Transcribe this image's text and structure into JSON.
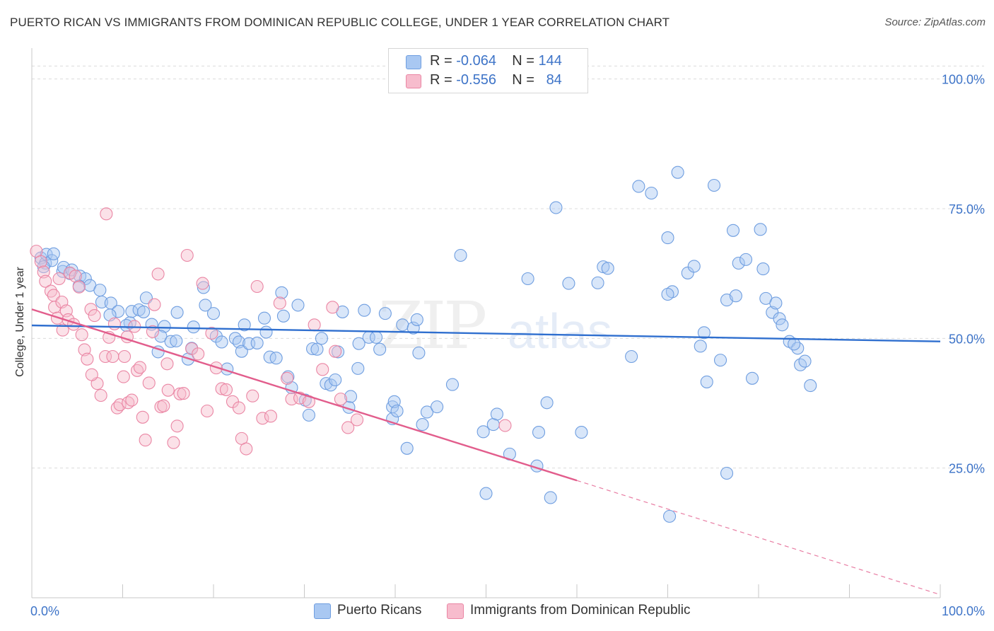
{
  "title": "PUERTO RICAN VS IMMIGRANTS FROM DOMINICAN REPUBLIC COLLEGE, UNDER 1 YEAR CORRELATION CHART",
  "source": "Source: ZipAtlas.com",
  "watermark": {
    "zip": "ZIP",
    "atlas": "atlas"
  },
  "legend": {
    "r_label": "R =",
    "n_label": "N =",
    "rows": [
      {
        "r": "-0.064",
        "n": "144",
        "color": "#a9c8f2",
        "border": "#6f9ee0"
      },
      {
        "r": "-0.556",
        "n": "84",
        "color": "#f7bccd",
        "border": "#ea86a4"
      }
    ]
  },
  "bottom_legend": [
    "Puerto Ricans",
    "Immigrants from Dominican Republic"
  ],
  "chart_data": {
    "type": "scatter",
    "xlabel": "",
    "ylabel": "College, Under 1 year",
    "xlim": [
      0,
      100
    ],
    "ylim": [
      0,
      105
    ],
    "x_tick_labels": [
      "0.0%",
      "100.0%"
    ],
    "y_ticks": [
      25,
      50,
      75,
      100
    ],
    "y_tick_labels": [
      "25.0%",
      "50.0%",
      "75.0%",
      "100.0%"
    ],
    "grid": "horizontal dashed",
    "legend_position": "top-center",
    "series": [
      {
        "name": "Puerto Ricans",
        "color": "#a9c8f2",
        "stroke": "#6f9ee0",
        "trend": {
          "x": [
            0,
            100
          ],
          "y": [
            52.5,
            49.4
          ],
          "color": "#2f6fcf"
        },
        "points": [
          [
            1.0,
            65.5
          ],
          [
            1.5,
            64.5
          ],
          [
            1.6,
            66.2
          ],
          [
            2.2,
            65.0
          ],
          [
            2.4,
            66.3
          ],
          [
            1.3,
            63.8
          ],
          [
            3.4,
            62.9
          ],
          [
            3.5,
            63.7
          ],
          [
            4.2,
            62.5
          ],
          [
            4.4,
            63.2
          ],
          [
            5.3,
            62.0
          ],
          [
            5.9,
            61.5
          ],
          [
            5.2,
            60.1
          ],
          [
            6.4,
            60.2
          ],
          [
            7.5,
            59.3
          ],
          [
            7.7,
            57.0
          ],
          [
            8.7,
            56.8
          ],
          [
            9.5,
            55.2
          ],
          [
            8.6,
            54.5
          ],
          [
            10.8,
            53.0
          ],
          [
            11.0,
            55.2
          ],
          [
            11.8,
            55.5
          ],
          [
            12.3,
            55.1
          ],
          [
            12.6,
            57.8
          ],
          [
            10.4,
            52.5
          ],
          [
            13.2,
            52.7
          ],
          [
            14.6,
            52.3
          ],
          [
            14.2,
            50.4
          ],
          [
            15.3,
            49.4
          ],
          [
            13.9,
            47.4
          ],
          [
            16.0,
            55.0
          ],
          [
            15.9,
            49.5
          ],
          [
            17.6,
            48.1
          ],
          [
            17.8,
            52.2
          ],
          [
            17.2,
            46.0
          ],
          [
            18.9,
            59.8
          ],
          [
            19.1,
            56.4
          ],
          [
            20.0,
            54.8
          ],
          [
            20.3,
            50.4
          ],
          [
            20.9,
            49.3
          ],
          [
            21.5,
            44.1
          ],
          [
            22.4,
            50.0
          ],
          [
            22.8,
            49.3
          ],
          [
            23.1,
            47.5
          ],
          [
            23.4,
            52.6
          ],
          [
            23.9,
            49.0
          ],
          [
            24.8,
            49.1
          ],
          [
            25.6,
            53.9
          ],
          [
            25.8,
            51.2
          ],
          [
            26.2,
            46.4
          ],
          [
            26.9,
            46.2
          ],
          [
            27.5,
            58.8
          ],
          [
            27.7,
            54.3
          ],
          [
            28.2,
            42.6
          ],
          [
            28.6,
            40.5
          ],
          [
            29.3,
            56.4
          ],
          [
            30.1,
            38.1
          ],
          [
            30.5,
            35.2
          ],
          [
            30.9,
            48.0
          ],
          [
            31.4,
            47.9
          ],
          [
            31.9,
            50.0
          ],
          [
            32.4,
            41.3
          ],
          [
            32.9,
            41.0
          ],
          [
            33.4,
            42.0
          ],
          [
            33.7,
            47.4
          ],
          [
            34.2,
            55.1
          ],
          [
            34.9,
            36.7
          ],
          [
            35.1,
            38.8
          ],
          [
            35.9,
            44.2
          ],
          [
            36.6,
            55.4
          ],
          [
            37.1,
            50.2
          ],
          [
            37.9,
            50.2
          ],
          [
            38.3,
            47.9
          ],
          [
            38.9,
            54.8
          ],
          [
            39.7,
            34.5
          ],
          [
            39.7,
            36.8
          ],
          [
            39.9,
            37.8
          ],
          [
            40.2,
            36.0
          ],
          [
            40.8,
            52.6
          ],
          [
            41.3,
            28.8
          ],
          [
            42.0,
            52.0
          ],
          [
            42.4,
            53.6
          ],
          [
            42.6,
            47.2
          ],
          [
            43.0,
            33.4
          ],
          [
            43.5,
            35.8
          ],
          [
            44.6,
            36.8
          ],
          [
            46.3,
            41.1
          ],
          [
            47.2,
            66.0
          ],
          [
            49.7,
            32.0
          ],
          [
            50.0,
            20.1
          ],
          [
            50.8,
            33.4
          ],
          [
            51.2,
            35.4
          ],
          [
            52.6,
            27.7
          ],
          [
            54.6,
            61.5
          ],
          [
            55.6,
            25.4
          ],
          [
            55.8,
            31.9
          ],
          [
            56.7,
            37.6
          ],
          [
            57.1,
            19.3
          ],
          [
            57.7,
            75.2
          ],
          [
            59.1,
            60.6
          ],
          [
            60.5,
            31.9
          ],
          [
            62.3,
            60.7
          ],
          [
            62.9,
            63.8
          ],
          [
            63.4,
            63.5
          ],
          [
            66.0,
            46.5
          ],
          [
            66.8,
            79.3
          ],
          [
            68.2,
            78.0
          ],
          [
            70.0,
            69.4
          ],
          [
            70.5,
            59.0
          ],
          [
            71.1,
            82.0
          ],
          [
            72.2,
            62.6
          ],
          [
            72.9,
            63.9
          ],
          [
            73.6,
            48.5
          ],
          [
            74.0,
            51.1
          ],
          [
            74.3,
            41.6
          ],
          [
            75.1,
            79.5
          ],
          [
            75.8,
            45.8
          ],
          [
            76.5,
            57.4
          ],
          [
            77.2,
            70.8
          ],
          [
            77.5,
            58.2
          ],
          [
            77.8,
            64.5
          ],
          [
            78.6,
            65.2
          ],
          [
            79.3,
            42.3
          ],
          [
            80.2,
            71.0
          ],
          [
            80.5,
            63.4
          ],
          [
            80.8,
            57.7
          ],
          [
            81.5,
            55.0
          ],
          [
            81.9,
            56.8
          ],
          [
            82.3,
            53.8
          ],
          [
            82.6,
            52.6
          ],
          [
            83.4,
            49.4
          ],
          [
            84.3,
            48.1
          ],
          [
            84.6,
            44.9
          ],
          [
            85.1,
            45.6
          ],
          [
            85.7,
            40.9
          ],
          [
            70.2,
            15.7
          ],
          [
            76.5,
            24.0
          ],
          [
            83.9,
            48.9
          ],
          [
            70.0,
            58.5
          ],
          [
            36.0,
            49.0
          ]
        ]
      },
      {
        "name": "Immigrants from Dominican Republic",
        "color": "#f7bccd",
        "stroke": "#ea86a4",
        "trend": {
          "x": [
            0,
            60
          ],
          "y": [
            55.6,
            22.6
          ],
          "dash_to": [
            100,
            0.6
          ],
          "color": "#e25d8c"
        },
        "points": [
          [
            0.5,
            66.8
          ],
          [
            1.0,
            64.8
          ],
          [
            1.3,
            62.8
          ],
          [
            1.5,
            61.0
          ],
          [
            2.1,
            59.1
          ],
          [
            2.4,
            58.3
          ],
          [
            2.5,
            56.0
          ],
          [
            2.8,
            53.9
          ],
          [
            3.3,
            57.0
          ],
          [
            3.4,
            51.6
          ],
          [
            3.8,
            55.3
          ],
          [
            4.0,
            53.6
          ],
          [
            4.2,
            62.6
          ],
          [
            4.6,
            52.7
          ],
          [
            4.8,
            62.0
          ],
          [
            5.2,
            59.9
          ],
          [
            5.5,
            50.7
          ],
          [
            5.8,
            47.8
          ],
          [
            6.1,
            46.0
          ],
          [
            6.5,
            55.6
          ],
          [
            6.9,
            54.4
          ],
          [
            7.2,
            41.3
          ],
          [
            7.6,
            39.0
          ],
          [
            8.1,
            46.5
          ],
          [
            8.5,
            50.2
          ],
          [
            8.9,
            46.5
          ],
          [
            9.1,
            52.8
          ],
          [
            9.4,
            36.6
          ],
          [
            9.7,
            37.2
          ],
          [
            10.1,
            42.6
          ],
          [
            10.2,
            46.5
          ],
          [
            10.5,
            50.3
          ],
          [
            10.6,
            37.6
          ],
          [
            11.0,
            38.1
          ],
          [
            11.3,
            52.3
          ],
          [
            11.6,
            43.8
          ],
          [
            11.9,
            44.4
          ],
          [
            12.2,
            34.8
          ],
          [
            12.5,
            30.4
          ],
          [
            12.9,
            41.4
          ],
          [
            13.3,
            51.3
          ],
          [
            13.5,
            56.5
          ],
          [
            13.9,
            62.4
          ],
          [
            14.2,
            36.8
          ],
          [
            14.5,
            37.0
          ],
          [
            14.9,
            45.1
          ],
          [
            15.0,
            40.0
          ],
          [
            15.6,
            29.9
          ],
          [
            16.0,
            33.1
          ],
          [
            16.3,
            39.3
          ],
          [
            16.7,
            39.4
          ],
          [
            17.1,
            66.0
          ],
          [
            17.6,
            48.0
          ],
          [
            18.3,
            47.0
          ],
          [
            18.8,
            60.6
          ],
          [
            19.3,
            36.0
          ],
          [
            19.8,
            51.0
          ],
          [
            20.3,
            44.3
          ],
          [
            20.9,
            40.3
          ],
          [
            21.4,
            40.1
          ],
          [
            22.1,
            37.8
          ],
          [
            22.8,
            36.6
          ],
          [
            23.1,
            30.7
          ],
          [
            23.6,
            28.7
          ],
          [
            24.3,
            38.9
          ],
          [
            24.8,
            60.0
          ],
          [
            25.4,
            34.6
          ],
          [
            26.3,
            35.0
          ],
          [
            27.3,
            56.8
          ],
          [
            28.1,
            42.3
          ],
          [
            28.6,
            38.3
          ],
          [
            29.5,
            38.5
          ],
          [
            30.5,
            37.8
          ],
          [
            31.1,
            52.6
          ],
          [
            32.0,
            44.0
          ],
          [
            33.1,
            56.0
          ],
          [
            33.4,
            47.5
          ],
          [
            34.0,
            38.3
          ],
          [
            34.8,
            32.8
          ],
          [
            35.8,
            34.3
          ],
          [
            52.1,
            33.2
          ],
          [
            3.0,
            61.5
          ],
          [
            8.2,
            74.0
          ],
          [
            6.6,
            43.0
          ]
        ]
      }
    ]
  }
}
